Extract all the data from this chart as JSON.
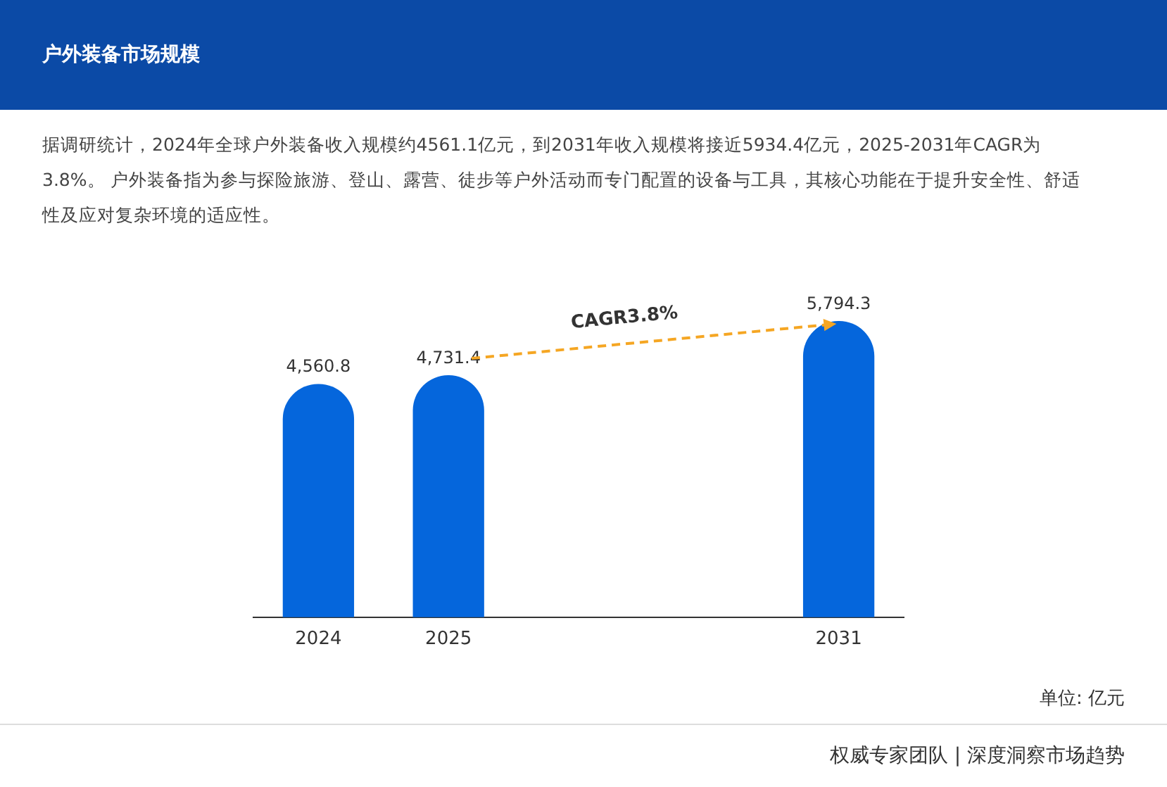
{
  "chart_data": {
    "type": "bar",
    "title": "户外装备市场规模",
    "subtitle": "据调研统计，2024年全球户外装备收入规模约4561.1亿元，到2031年收入规模将接近5934.4亿元，2025-2031年CAGR为3.8%。 户外装备指为参与探险旅游、登山、露营、徒步等户外活动而专门配置的设备与工具，其核心功能在于提升安全性、舒适性及应对复杂环境的适应性。",
    "categories": [
      "2024",
      "2025",
      null,
      null,
      "2031"
    ],
    "values": [
      4560.8,
      4731.4,
      null,
      null,
      5794.3
    ],
    "color": "#0566dc",
    "value_labels": [
      "4,560.8",
      "4,731.4",
      null,
      null,
      "5,794.3"
    ],
    "tick_labels": "x",
    "legend": false,
    "grid": false,
    "annotations": [
      "CAGR3.8%",
      "单位: 亿元",
      "权威专家团队 | 深度洞察市场趋势"
    ]
  }
}
